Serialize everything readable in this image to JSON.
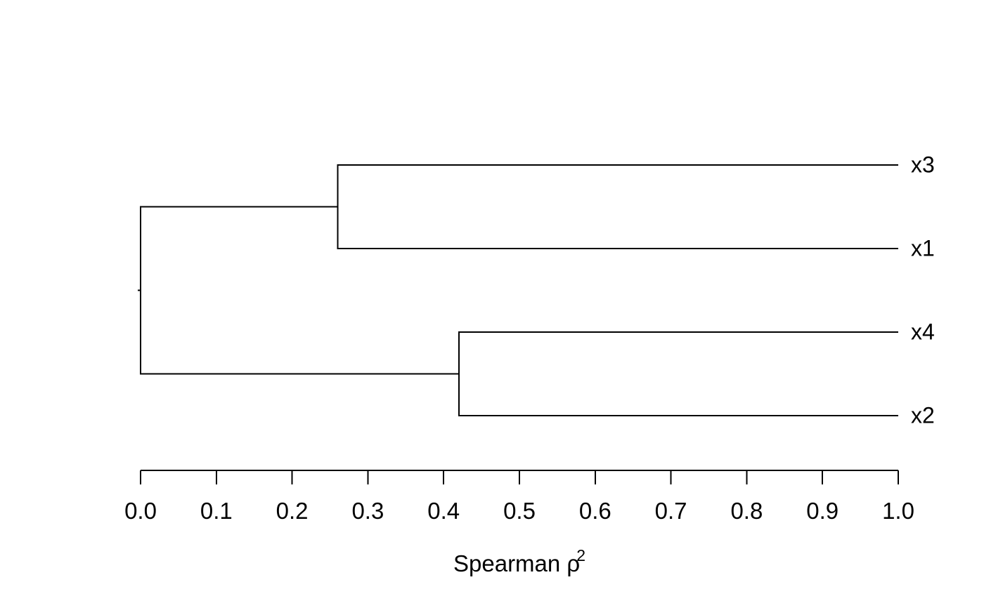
{
  "chart_data": {
    "type": "dendrogram",
    "orientation": "horizontal",
    "title": "",
    "xlabel": "Spearman ρ²",
    "x_axis_title": {
      "text": "Spearman ρ",
      "superscript": "2"
    },
    "x_axis": {
      "range": [
        0.0,
        1.0
      ],
      "ticks": [
        0.0,
        0.1,
        0.2,
        0.3,
        0.4,
        0.5,
        0.6,
        0.7,
        0.8,
        0.9,
        1.0
      ],
      "tick_labels": [
        "0.0",
        "0.1",
        "0.2",
        "0.3",
        "0.4",
        "0.5",
        "0.6",
        "0.7",
        "0.8",
        "0.9",
        "1.0"
      ],
      "grid": false
    },
    "leaves": [
      {
        "label": "x3"
      },
      {
        "label": "x1"
      },
      {
        "label": "x4"
      },
      {
        "label": "x2"
      }
    ],
    "leaf_similarity": 1.0,
    "merges": [
      {
        "members": [
          "x3",
          "x1"
        ],
        "similarity": 0.26
      },
      {
        "members": [
          "x4",
          "x2"
        ],
        "similarity": 0.42
      },
      {
        "members": [
          "cluster-0",
          "cluster-1"
        ],
        "similarity": 0.0
      }
    ],
    "line_color": "#000000",
    "text_color": "#000000",
    "background": "#ffffff"
  }
}
